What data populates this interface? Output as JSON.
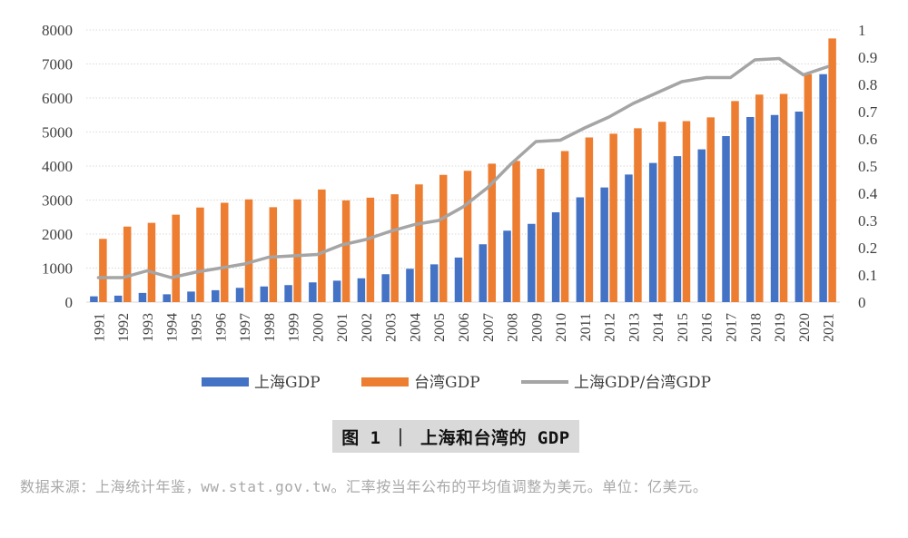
{
  "chart_data": {
    "type": "bar",
    "categories": [
      "1991",
      "1992",
      "1993",
      "1994",
      "1995",
      "1996",
      "1997",
      "1998",
      "1999",
      "2000",
      "2001",
      "2002",
      "2003",
      "2004",
      "2005",
      "2006",
      "2007",
      "2008",
      "2009",
      "2010",
      "2011",
      "2012",
      "2013",
      "2014",
      "2015",
      "2016",
      "2017",
      "2018",
      "2019",
      "2020",
      "2021"
    ],
    "series": [
      {
        "name": "上海GDP",
        "kind": "bar",
        "axis": "left",
        "color": "#4472c4",
        "values": [
          170,
          190,
          270,
          230,
          310,
          350,
          420,
          460,
          500,
          580,
          630,
          700,
          820,
          980,
          1110,
          1310,
          1700,
          2100,
          2300,
          2640,
          3080,
          3370,
          3750,
          4090,
          4290,
          4490,
          4880,
          5440,
          5500,
          5600,
          6700
        ]
      },
      {
        "name": "台湾GDP",
        "kind": "bar",
        "axis": "left",
        "color": "#ed7d31",
        "values": [
          1860,
          2220,
          2330,
          2570,
          2780,
          2920,
          3020,
          2790,
          3020,
          3310,
          2990,
          3070,
          3170,
          3460,
          3740,
          3860,
          4070,
          4150,
          3920,
          4440,
          4840,
          4950,
          5110,
          5300,
          5320,
          5430,
          5910,
          6100,
          6120,
          6700,
          7750
        ]
      },
      {
        "name": "上海GDP/台湾GDP",
        "kind": "line",
        "axis": "right",
        "color": "#a5a5a5",
        "values": [
          0.09,
          0.09,
          0.115,
          0.09,
          0.11,
          0.125,
          0.14,
          0.165,
          0.17,
          0.175,
          0.21,
          0.23,
          0.26,
          0.285,
          0.3,
          0.35,
          0.42,
          0.51,
          0.59,
          0.595,
          0.64,
          0.68,
          0.73,
          0.77,
          0.81,
          0.825,
          0.825,
          0.89,
          0.895,
          0.835,
          0.865
        ]
      }
    ],
    "ylim": [
      0,
      8000
    ],
    "yticks": [
      0,
      1000,
      2000,
      3000,
      4000,
      5000,
      6000,
      7000,
      8000
    ],
    "y2lim": [
      0,
      1
    ],
    "y2ticks": [
      "0",
      "0.1",
      "0.2",
      "0.3",
      "0.4",
      "0.5",
      "0.6",
      "0.7",
      "0.8",
      "0.9",
      "1"
    ],
    "grid": true,
    "legend_position": "bottom"
  },
  "figure": {
    "caption": "图 1 ｜ 上海和台湾的 GDP",
    "source": "数据来源：上海统计年鉴，ww.stat.gov.tw。汇率按当年公布的平均值调整为美元。单位：亿美元。"
  }
}
